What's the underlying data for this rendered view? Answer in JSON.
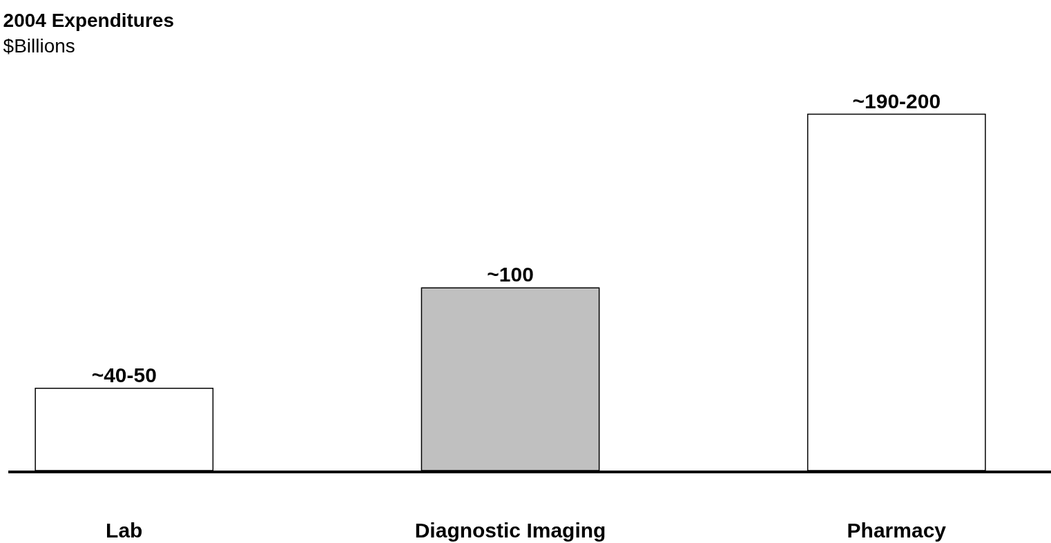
{
  "chart_data": {
    "type": "bar",
    "title": "2004 Expenditures",
    "subtitle": "$Billions",
    "categories": [
      "Lab",
      "Diagnostic Imaging",
      "Pharmacy"
    ],
    "values": [
      45,
      100,
      195
    ],
    "colors": [
      "#ffffff",
      "#c0c0c0",
      "#ffffff"
    ],
    "value_labels": [
      "~40-50",
      "~100",
      "~190-200"
    ],
    "grid": false
  }
}
